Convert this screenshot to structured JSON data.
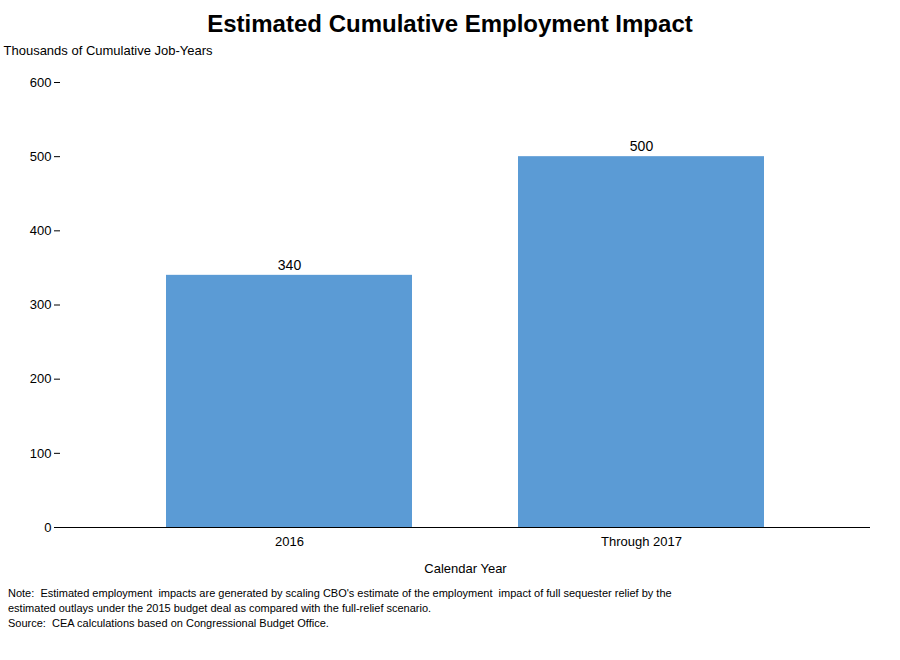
{
  "chart_data": {
    "type": "bar",
    "title": "Estimated Cumulative Employment Impact",
    "xlabel": "Calendar Year",
    "ylabel": "Thousands of Cumulative Job-Years",
    "categories": [
      "2016",
      "Through 2017"
    ],
    "values": [
      340,
      500
    ],
    "color": "#5B9BD5",
    "ylim": [
      0,
      600
    ],
    "yticks": [
      0,
      100,
      200,
      300,
      400,
      500,
      600
    ],
    "grid": false,
    "data_labels": true,
    "annotations": [
      "Note:  Estimated employment  impacts are generated by scaling CBO's estimate of the employment  impact of full sequester relief by the\nestimated outlays under the 2015 budget deal as compared with the full-relief scenario.\nSource:  CEA calculations based on Congressional Budget Office."
    ]
  }
}
